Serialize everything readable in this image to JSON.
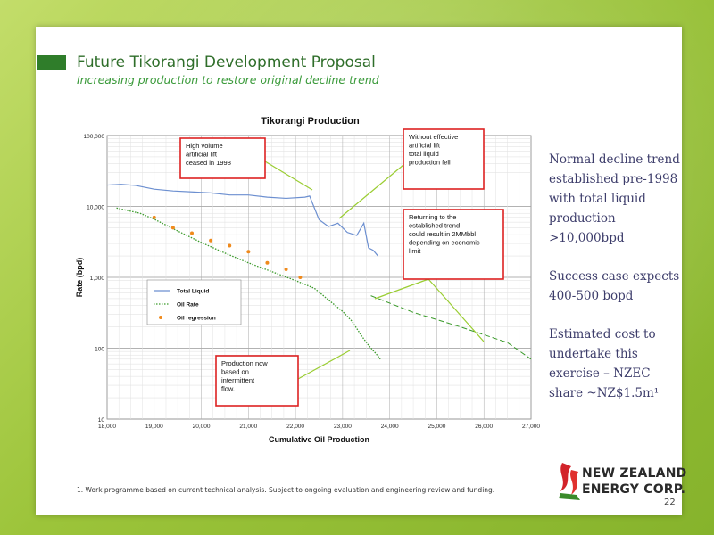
{
  "slide": {
    "title": "Future Tikorangi Development Proposal",
    "subtitle": "Increasing production to restore original decline trend",
    "bullets": [
      "Normal decline trend established pre-1998 with total liquid production >10,000bpd",
      "Success case expects 400-500 bopd",
      "Estimated cost to undertake this exercise – NZEC share ~NZ$1.5m¹"
    ],
    "footnote": "1. Work programme based on current technical analysis. Subject to ongoing evaluation and engineering review and funding.",
    "page_number": "22",
    "logo": {
      "line1": "NEW ZEALAND",
      "line2": "ENERGY CORP."
    }
  },
  "colors": {
    "title": "#2f6e2a",
    "bullet_text": "#3d3d6b",
    "total_liquid": "#6c8fd0",
    "oil_rate": "#3a9a2a",
    "oil_regression": "#f08a1c",
    "callout_border": "#d22",
    "arrow": "#9acd32"
  },
  "chart_data": {
    "type": "line",
    "title": "Tikorangi Production",
    "xlabel": "Cumulative Oil Production",
    "ylabel": "Rate (bpd)",
    "xlim": [
      18000,
      27000
    ],
    "ylim": [
      10,
      100000
    ],
    "yscale": "log",
    "grid": true,
    "x_ticks": [
      "18,000",
      "19,000",
      "20,000",
      "21,000",
      "22,000",
      "23,000",
      "24,000",
      "25,000",
      "26,000",
      "27,000"
    ],
    "y_ticks": [
      "100,000",
      "10,000",
      "1,000",
      "100",
      "10"
    ],
    "legend_position": "left-middle",
    "series": [
      {
        "name": "Total Liquid",
        "style": "line",
        "x": [
          18000,
          18300,
          18600,
          19000,
          19400,
          19800,
          20200,
          20600,
          21000,
          21400,
          21800,
          22200,
          22300,
          22500,
          22700,
          22900,
          23100,
          23300,
          23450,
          23550,
          23650,
          23750
        ],
        "y": [
          20000,
          20500,
          19800,
          17500,
          16500,
          16000,
          15500,
          14500,
          14500,
          13500,
          13000,
          13500,
          14000,
          6500,
          5200,
          5800,
          4300,
          3900,
          5800,
          2600,
          2400,
          2000
        ]
      },
      {
        "name": "Oil Rate",
        "style": "dotted",
        "x": [
          18200,
          18700,
          19000,
          19500,
          20000,
          20500,
          21000,
          21500,
          22000,
          22400,
          22700,
          23000,
          23200,
          23400,
          23550,
          23700,
          23800
        ],
        "y": [
          9500,
          8000,
          6600,
          4500,
          3100,
          2200,
          1600,
          1200,
          900,
          700,
          480,
          330,
          240,
          150,
          110,
          85,
          70
        ]
      },
      {
        "name": "Oil regression",
        "style": "markers",
        "x": [
          19000,
          19400,
          19800,
          20200,
          20600,
          21000,
          21400,
          21800,
          22100
        ],
        "y": [
          7000,
          5000,
          4200,
          3300,
          2800,
          2300,
          1600,
          1300,
          1000
        ]
      },
      {
        "name": "",
        "style": "dashed",
        "x": [
          23600,
          24500,
          25500,
          26500,
          27000
        ],
        "y": [
          550,
          320,
          200,
          120,
          70
        ]
      }
    ],
    "annotations": [
      "High volume artificial lift ceased in 1998",
      "Without effective artificial lift total liquid production fell",
      "Returning to the established trend could result in 2MMbbl depending on economic limit",
      "Production now based on intermittent flow."
    ]
  }
}
